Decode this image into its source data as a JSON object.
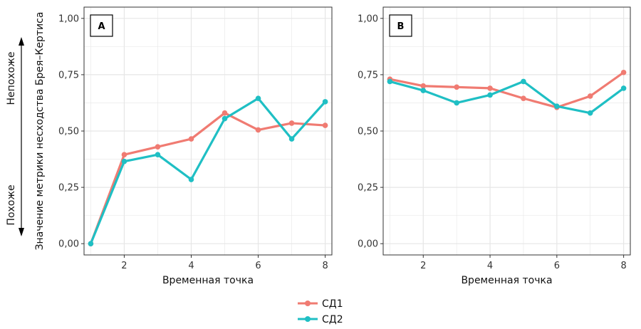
{
  "side_labels": {
    "top": "Непохоже",
    "bottom": "Похоже"
  },
  "colors": {
    "series1": "#F07B72",
    "series2": "#1FBFC4",
    "grid": "#E6E6E6",
    "frame": "#333333"
  },
  "chart_data": [
    {
      "type": "line",
      "panel_label": "A",
      "xlabel": "Временная точка",
      "ylabel": "Значение метрики несходства Брея–Кертиса",
      "xlim": [
        0.8,
        8.2
      ],
      "ylim": [
        -0.05,
        1.05
      ],
      "x_ticks": [
        2,
        4,
        6,
        8
      ],
      "x_tick_labels": [
        "2",
        "4",
        "6",
        "8"
      ],
      "y_ticks": [
        0,
        0.25,
        0.5,
        0.75,
        1.0
      ],
      "y_tick_labels": [
        "0,00",
        "0,25",
        "0,50",
        "0,75",
        "1,00"
      ],
      "x": [
        1,
        2,
        3,
        4,
        5,
        6,
        7,
        8
      ],
      "series": [
        {
          "name": "СД1",
          "values": [
            0.0,
            0.395,
            0.43,
            0.465,
            0.58,
            0.505,
            0.535,
            0.525
          ]
        },
        {
          "name": "СД2",
          "values": [
            0.0,
            0.365,
            0.395,
            0.285,
            0.555,
            0.645,
            0.465,
            0.63
          ]
        }
      ]
    },
    {
      "type": "line",
      "panel_label": "B",
      "xlabel": "Временная точка",
      "ylabel": "",
      "xlim": [
        0.8,
        8.2
      ],
      "ylim": [
        -0.05,
        1.05
      ],
      "x_ticks": [
        2,
        4,
        6,
        8
      ],
      "x_tick_labels": [
        "2",
        "4",
        "6",
        "8"
      ],
      "y_ticks": [
        0,
        0.25,
        0.5,
        0.75,
        1.0
      ],
      "y_tick_labels": [
        "0,00",
        "0,25",
        "0,50",
        "0,75",
        "1,00"
      ],
      "x": [
        1,
        2,
        3,
        4,
        5,
        6,
        7,
        8
      ],
      "series": [
        {
          "name": "СД1",
          "values": [
            0.73,
            0.7,
            0.695,
            0.69,
            0.645,
            0.605,
            0.655,
            0.76
          ]
        },
        {
          "name": "СД2",
          "values": [
            0.72,
            0.68,
            0.625,
            0.66,
            0.72,
            0.61,
            0.58,
            0.69
          ]
        }
      ]
    }
  ],
  "legend": {
    "entries": [
      "СД1",
      "СД2"
    ]
  }
}
